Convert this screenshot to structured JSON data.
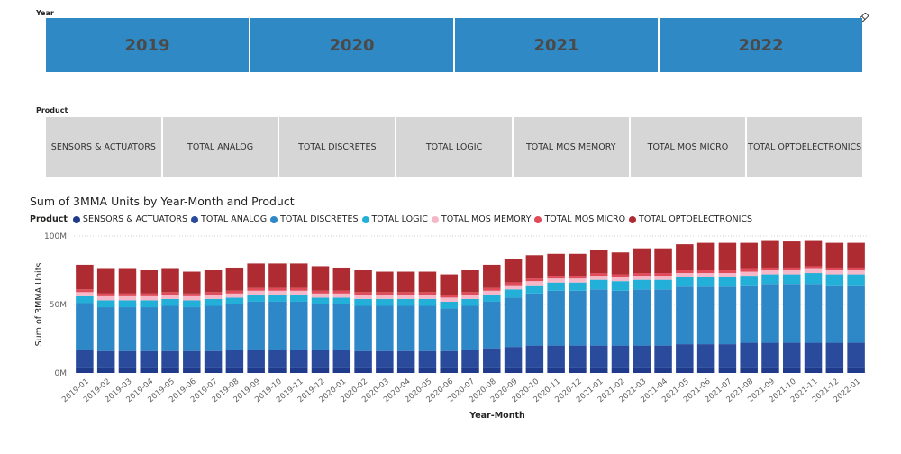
{
  "year_slicer": {
    "title": "Year",
    "items": [
      "2019",
      "2020",
      "2021",
      "2022"
    ]
  },
  "product_slicer": {
    "title": "Product",
    "items": [
      "SENSORS & ACTUATORS",
      "TOTAL ANALOG",
      "TOTAL DISCRETES",
      "TOTAL LOGIC",
      "TOTAL MOS MEMORY",
      "TOTAL MOS MICRO",
      "TOTAL OPTOELECTRONICS"
    ]
  },
  "icons": {
    "eraser": "eraser-icon"
  },
  "chart_data": {
    "type": "bar",
    "stacked": true,
    "title": "Sum of 3MMA Units by Year-Month and Product",
    "xlabel": "Year-Month",
    "ylabel": "Sum of 3MMA Units",
    "legend_title": "Product",
    "legend_position": "top-left",
    "ylim": [
      0,
      100
    ],
    "yticks": [
      {
        "value": 0,
        "label": "0M"
      },
      {
        "value": 50,
        "label": "50M"
      },
      {
        "value": 100,
        "label": "100M"
      }
    ],
    "grid": true,
    "categories": [
      "2019-01",
      "2019-02",
      "2019-03",
      "2019-04",
      "2019-05",
      "2019-06",
      "2019-07",
      "2019-08",
      "2019-09",
      "2019-10",
      "2019-11",
      "2019-12",
      "2020-01",
      "2020-02",
      "2020-03",
      "2020-04",
      "2020-05",
      "2020-06",
      "2020-07",
      "2020-08",
      "2020-09",
      "2020-10",
      "2020-11",
      "2020-12",
      "2021-01",
      "2021-02",
      "2021-03",
      "2021-04",
      "2021-05",
      "2021-06",
      "2021-07",
      "2021-08",
      "2021-09",
      "2021-10",
      "2021-11",
      "2021-12",
      "2022-01"
    ],
    "series": [
      {
        "name": "SENSORS & ACTUATORS",
        "color": "#1f3a8a",
        "values": [
          4,
          4,
          4,
          4,
          4,
          4,
          4,
          4,
          4,
          4,
          4,
          4,
          4,
          4,
          4,
          4,
          4,
          4,
          4,
          4,
          4,
          4,
          4,
          4,
          4,
          4,
          4,
          4,
          4,
          4,
          4,
          4,
          4,
          4,
          4,
          4,
          4
        ]
      },
      {
        "name": "TOTAL ANALOG",
        "color": "#2a4b9c",
        "values": [
          13,
          12,
          12,
          12,
          12,
          12,
          12,
          13,
          13,
          13,
          13,
          13,
          13,
          12,
          12,
          12,
          12,
          12,
          13,
          14,
          15,
          16,
          16,
          16,
          16,
          16,
          16,
          16,
          17,
          17,
          17,
          18,
          18,
          18,
          18,
          18,
          18
        ]
      },
      {
        "name": "TOTAL DISCRETES",
        "color": "#2e88c8",
        "values": [
          34,
          32,
          32,
          32,
          33,
          32,
          33,
          33,
          35,
          35,
          35,
          33,
          33,
          33,
          33,
          33,
          33,
          31,
          32,
          34,
          36,
          38,
          40,
          40,
          41,
          40,
          41,
          41,
          42,
          42,
          42,
          42,
          43,
          43,
          43,
          42,
          42
        ]
      },
      {
        "name": "TOTAL LOGIC",
        "color": "#22b0d9",
        "values": [
          5,
          5,
          5,
          5,
          5,
          5,
          5,
          5,
          5,
          5,
          5,
          5,
          5,
          5,
          5,
          5,
          5,
          5,
          5,
          5,
          6,
          6,
          6,
          6,
          7,
          7,
          7,
          7,
          7,
          7,
          7,
          7,
          7,
          7,
          8,
          8,
          8
        ]
      },
      {
        "name": "TOTAL MOS MEMORY",
        "color": "#f4b8c8",
        "values": [
          3,
          3,
          3,
          3,
          3,
          3,
          3,
          3,
          3,
          3,
          3,
          3,
          3,
          3,
          3,
          3,
          3,
          3,
          3,
          3,
          3,
          3,
          3,
          3,
          3,
          3,
          3,
          3,
          3,
          3,
          3,
          3,
          3,
          3,
          3,
          3,
          3
        ]
      },
      {
        "name": "TOTAL MOS MICRO",
        "color": "#e04b5a",
        "values": [
          2,
          2,
          2,
          2,
          2,
          2,
          2,
          2,
          2,
          2,
          2,
          2,
          2,
          2,
          2,
          2,
          2,
          2,
          2,
          2,
          2,
          2,
          2,
          2,
          2,
          2,
          2,
          2,
          2,
          2,
          2,
          2,
          2,
          2,
          2,
          2,
          2
        ]
      },
      {
        "name": "TOTAL OPTOELECTRONICS",
        "color": "#ae2c31",
        "values": [
          18,
          18,
          18,
          17,
          17,
          16,
          16,
          17,
          18,
          18,
          18,
          18,
          17,
          16,
          15,
          15,
          15,
          15,
          16,
          17,
          17,
          17,
          16,
          16,
          17,
          16,
          18,
          18,
          19,
          20,
          20,
          19,
          20,
          19,
          19,
          18,
          18
        ]
      }
    ]
  }
}
